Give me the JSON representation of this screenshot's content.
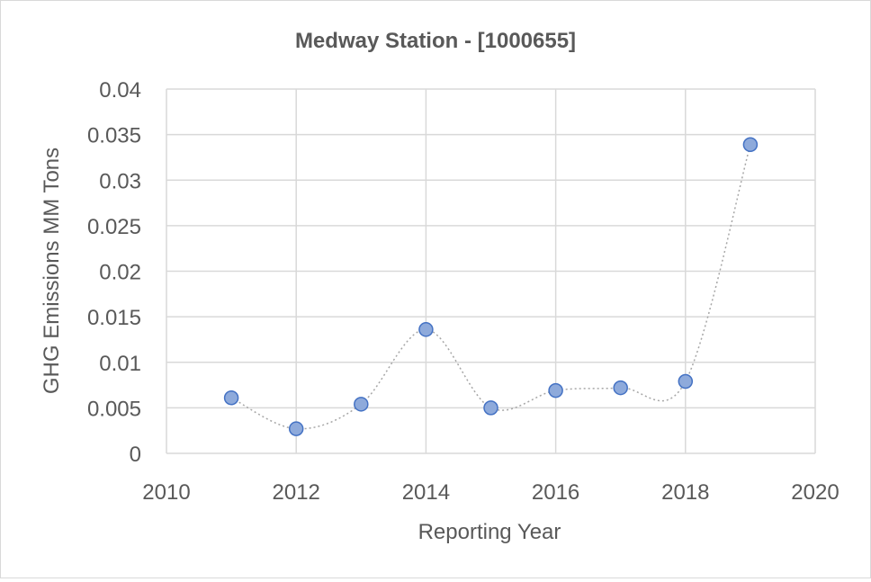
{
  "chart_data": {
    "type": "scatter",
    "title": "Medway Station - [1000655]",
    "xlabel": "Reporting Year",
    "ylabel": "GHG Emissions MM Tons",
    "xlim": [
      2010,
      2020
    ],
    "ylim": [
      0,
      0.04
    ],
    "x_ticks": [
      "2010",
      "2012",
      "2014",
      "2016",
      "2018",
      "2020"
    ],
    "y_ticks": [
      "0",
      "0.005",
      "0.01",
      "0.015",
      "0.02",
      "0.025",
      "0.03",
      "0.035",
      "0.04"
    ],
    "grid": true,
    "line_style": "smoothed dotted connector",
    "colors": {
      "marker_fill": "#8eaadb",
      "marker_stroke": "#4472c4",
      "line": "#a6a6a6",
      "grid": "#d9d9d9",
      "text": "#595959"
    },
    "series": [
      {
        "x": [
          2011,
          2012,
          2013,
          2014,
          2015,
          2016,
          2017,
          2018,
          2019
        ],
        "y": [
          0.0061,
          0.0027,
          0.0054,
          0.0136,
          0.005,
          0.0069,
          0.0072,
          0.0079,
          0.0339
        ]
      }
    ]
  }
}
